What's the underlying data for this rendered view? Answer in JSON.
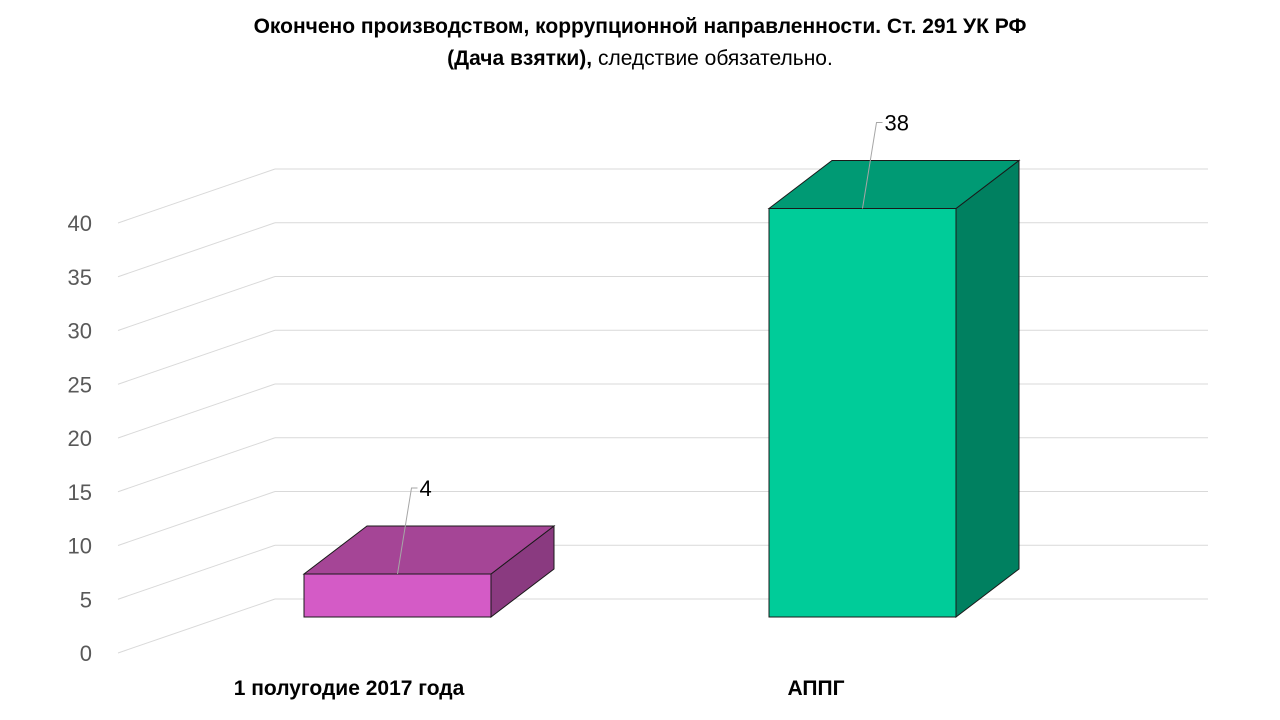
{
  "chart_data": {
    "type": "bar",
    "style": "3d",
    "title": {
      "line1": "Окончено производством, коррупционной направленности. Ст. 291 УК РФ",
      "line2_bold": "(Дача взятки),",
      "line2_normal": " следствие обязательно."
    },
    "xlabel": "",
    "ylabel": "",
    "ylim": [
      0,
      40
    ],
    "yticks": [
      0,
      5,
      10,
      15,
      20,
      25,
      30,
      35,
      40
    ],
    "grid": true,
    "legend": "none",
    "categories": [
      "1 полугодие 2017 года",
      "АППГ"
    ],
    "values": [
      4,
      38
    ],
    "data_labels": [
      "4",
      "38"
    ],
    "colors": {
      "bars": [
        {
          "front": "#d45bc6",
          "top": "#a54596",
          "side": "#8a3a80"
        },
        {
          "front": "#00cc99",
          "top": "#009a74",
          "side": "#008060"
        }
      ],
      "gridline": "#d9d9d9",
      "tick_label": "#595959",
      "leader_line": "#a6a6a6"
    }
  }
}
